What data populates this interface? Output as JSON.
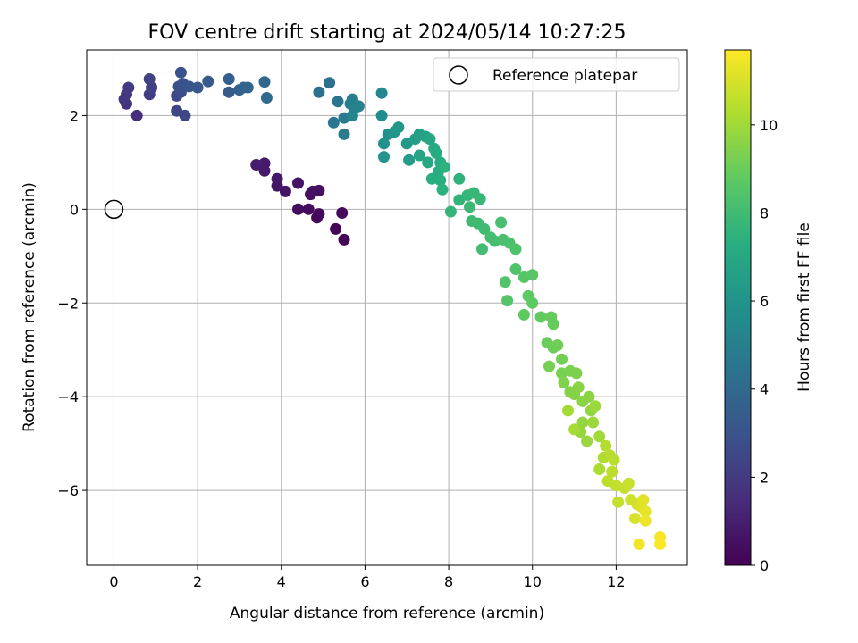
{
  "chart_data": {
    "type": "scatter",
    "title": "FOV centre drift starting at 2024/05/14 10:27:25",
    "xlabel": "Angular distance from reference (arcmin)",
    "ylabel": "Rotation from reference (arcmin)",
    "xlim": [
      -0.65,
      13.7
    ],
    "ylim": [
      -7.6,
      3.4
    ],
    "xticks": [
      0,
      2,
      4,
      6,
      8,
      10,
      12
    ],
    "yticks": [
      -6,
      -4,
      -2,
      0,
      2
    ],
    "xtick_labels": [
      "0",
      "2",
      "4",
      "6",
      "8",
      "10",
      "12"
    ],
    "ytick_labels": [
      "−6",
      "−4",
      "−2",
      "0",
      "2"
    ],
    "grid": true,
    "legend": {
      "position": "top-right",
      "entries": [
        "Reference platepar"
      ]
    },
    "reference_point": {
      "x": 0,
      "y": 0,
      "marker": "open-circle"
    },
    "colorbar": {
      "label": "Hours from first FF file",
      "colormap": "viridis",
      "range": [
        0,
        11.7
      ],
      "ticks": [
        0,
        2,
        4,
        6,
        8,
        10
      ],
      "tick_labels": [
        "0",
        "2",
        "4",
        "6",
        "8",
        "10"
      ]
    },
    "series": [
      {
        "values_xyc": [
          [
            5.5,
            -0.65,
            0.1
          ],
          [
            5.3,
            -0.42,
            0.15
          ],
          [
            4.85,
            -0.18,
            0.2
          ],
          [
            4.9,
            -0.1,
            0.25
          ],
          [
            5.45,
            -0.08,
            0.3
          ],
          [
            4.65,
            0.0,
            0.35
          ],
          [
            4.4,
            0.0,
            0.4
          ],
          [
            4.7,
            0.32,
            0.45
          ],
          [
            4.9,
            0.4,
            0.5
          ],
          [
            4.75,
            0.38,
            0.55
          ],
          [
            4.4,
            0.56,
            0.6
          ],
          [
            4.1,
            0.38,
            0.65
          ],
          [
            3.9,
            0.5,
            0.7
          ],
          [
            3.9,
            0.65,
            0.75
          ],
          [
            3.6,
            0.82,
            0.8
          ],
          [
            3.6,
            0.98,
            0.85
          ],
          [
            3.4,
            0.95,
            0.9
          ],
          [
            0.55,
            2.0,
            1.6
          ],
          [
            0.3,
            2.25,
            1.7
          ],
          [
            0.25,
            2.35,
            1.8
          ],
          [
            0.3,
            2.45,
            1.9
          ],
          [
            0.35,
            2.6,
            2.0
          ],
          [
            0.85,
            2.45,
            2.1
          ],
          [
            0.9,
            2.6,
            2.2
          ],
          [
            0.85,
            2.78,
            2.3
          ],
          [
            1.5,
            2.1,
            2.4
          ],
          [
            1.7,
            2.0,
            2.5
          ],
          [
            1.5,
            2.42,
            2.6
          ],
          [
            1.6,
            2.5,
            2.7
          ],
          [
            1.55,
            2.62,
            2.8
          ],
          [
            1.65,
            2.68,
            2.9
          ],
          [
            1.6,
            2.92,
            3.0
          ],
          [
            1.8,
            2.62,
            3.1
          ],
          [
            2.0,
            2.6,
            3.2
          ],
          [
            2.25,
            2.73,
            3.3
          ],
          [
            2.75,
            2.5,
            3.4
          ],
          [
            2.75,
            2.78,
            3.5
          ],
          [
            3.0,
            2.55,
            3.6
          ],
          [
            3.1,
            2.6,
            3.7
          ],
          [
            3.2,
            2.6,
            3.8
          ],
          [
            3.6,
            2.72,
            3.9
          ],
          [
            3.65,
            2.38,
            4.0
          ],
          [
            4.9,
            2.5,
            4.3
          ],
          [
            5.15,
            2.7,
            4.4
          ],
          [
            5.35,
            2.3,
            4.5
          ],
          [
            5.25,
            1.85,
            4.6
          ],
          [
            5.5,
            1.95,
            4.7
          ],
          [
            5.5,
            1.6,
            4.8
          ],
          [
            5.7,
            2.35,
            4.9
          ],
          [
            5.65,
            2.25,
            5.0
          ],
          [
            5.75,
            2.15,
            5.1
          ],
          [
            5.85,
            2.2,
            5.2
          ],
          [
            5.7,
            2.0,
            5.3
          ],
          [
            6.4,
            2.48,
            5.4
          ],
          [
            6.4,
            2.0,
            5.6
          ],
          [
            6.55,
            1.6,
            5.8
          ],
          [
            6.45,
            1.4,
            5.9
          ],
          [
            6.45,
            1.12,
            6.0
          ],
          [
            6.7,
            1.65,
            6.1
          ],
          [
            6.8,
            1.75,
            6.2
          ],
          [
            7.0,
            1.4,
            6.3
          ],
          [
            7.05,
            1.05,
            6.4
          ],
          [
            7.2,
            1.5,
            6.5
          ],
          [
            7.3,
            1.6,
            6.6
          ],
          [
            7.45,
            1.55,
            6.7
          ],
          [
            7.3,
            1.15,
            6.8
          ],
          [
            7.55,
            1.5,
            6.9
          ],
          [
            7.5,
            1.0,
            7.0
          ],
          [
            7.65,
            1.3,
            7.1
          ],
          [
            7.7,
            1.2,
            7.15
          ],
          [
            7.8,
            1.0,
            7.2
          ],
          [
            7.75,
            0.8,
            7.25
          ],
          [
            7.6,
            0.65,
            7.3
          ],
          [
            7.8,
            0.62,
            7.35
          ],
          [
            7.85,
            0.42,
            7.4
          ],
          [
            7.9,
            0.9,
            7.45
          ],
          [
            8.25,
            0.65,
            7.5
          ],
          [
            8.25,
            0.2,
            7.6
          ],
          [
            8.05,
            -0.05,
            7.65
          ],
          [
            8.45,
            0.3,
            7.7
          ],
          [
            8.6,
            0.35,
            7.75
          ],
          [
            8.75,
            0.22,
            7.8
          ],
          [
            8.5,
            0.05,
            7.85
          ],
          [
            8.55,
            -0.25,
            7.9
          ],
          [
            8.7,
            -0.3,
            7.95
          ],
          [
            8.85,
            -0.42,
            8.0
          ],
          [
            8.8,
            -0.85,
            8.05
          ],
          [
            9.0,
            -0.6,
            8.1
          ],
          [
            9.1,
            -0.68,
            8.15
          ],
          [
            9.25,
            -0.28,
            8.2
          ],
          [
            9.3,
            -0.65,
            8.25
          ],
          [
            9.45,
            -0.72,
            8.3
          ],
          [
            9.6,
            -0.85,
            8.35
          ],
          [
            9.6,
            -1.28,
            8.4
          ],
          [
            9.35,
            -1.55,
            8.45
          ],
          [
            9.4,
            -1.95,
            8.5
          ],
          [
            9.8,
            -1.45,
            8.55
          ],
          [
            10.0,
            -1.4,
            8.6
          ],
          [
            9.9,
            -1.85,
            8.7
          ],
          [
            10.0,
            -2.0,
            8.75
          ],
          [
            9.8,
            -2.25,
            8.8
          ],
          [
            10.2,
            -2.3,
            8.85
          ],
          [
            10.45,
            -2.3,
            8.9
          ],
          [
            10.5,
            -2.45,
            8.95
          ],
          [
            10.35,
            -2.85,
            9.0
          ],
          [
            10.5,
            -2.95,
            9.05
          ],
          [
            10.6,
            -2.9,
            9.1
          ],
          [
            10.7,
            -3.2,
            9.15
          ],
          [
            10.4,
            -3.35,
            9.2
          ],
          [
            10.7,
            -3.5,
            9.25
          ],
          [
            10.9,
            -3.45,
            9.3
          ],
          [
            11.05,
            -3.5,
            9.35
          ],
          [
            10.75,
            -3.7,
            9.4
          ],
          [
            10.9,
            -3.9,
            9.45
          ],
          [
            11.0,
            -3.95,
            9.5
          ],
          [
            11.1,
            -3.8,
            9.55
          ],
          [
            11.2,
            -4.1,
            9.6
          ],
          [
            11.35,
            -4.0,
            9.65
          ],
          [
            11.4,
            -4.3,
            9.7
          ],
          [
            11.2,
            -4.55,
            9.75
          ],
          [
            11.15,
            -4.75,
            9.8
          ],
          [
            11.3,
            -4.95,
            9.85
          ],
          [
            11.5,
            -4.2,
            9.9
          ],
          [
            11.45,
            -4.55,
            9.95
          ],
          [
            11.6,
            -4.85,
            10.0
          ],
          [
            10.85,
            -4.3,
            10.05
          ],
          [
            11.0,
            -4.7,
            10.1
          ],
          [
            11.6,
            -5.55,
            10.2
          ],
          [
            11.7,
            -5.3,
            10.3
          ],
          [
            11.75,
            -5.05,
            10.35
          ],
          [
            11.85,
            -5.25,
            10.4
          ],
          [
            11.95,
            -5.35,
            10.45
          ],
          [
            11.9,
            -5.6,
            10.5
          ],
          [
            11.8,
            -5.8,
            10.55
          ],
          [
            12.0,
            -5.9,
            10.6
          ],
          [
            12.05,
            -6.25,
            10.65
          ],
          [
            12.2,
            -5.95,
            10.7
          ],
          [
            12.3,
            -5.85,
            10.75
          ],
          [
            12.35,
            -6.2,
            10.85
          ],
          [
            12.5,
            -6.3,
            10.9
          ],
          [
            12.45,
            -6.6,
            11.0
          ],
          [
            12.6,
            -6.35,
            11.1
          ],
          [
            12.65,
            -6.2,
            11.2
          ],
          [
            12.7,
            -6.45,
            11.3
          ],
          [
            12.7,
            -6.65,
            11.4
          ],
          [
            12.55,
            -7.15,
            11.5
          ],
          [
            13.05,
            -7.0,
            11.6
          ],
          [
            13.05,
            -7.15,
            11.65
          ]
        ]
      }
    ]
  }
}
